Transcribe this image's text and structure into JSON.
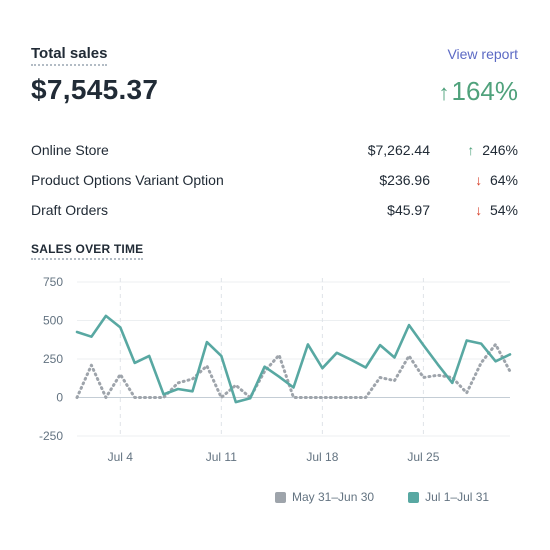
{
  "header": {
    "title": "Total sales",
    "view_report": "View report",
    "total": "$7,545.37",
    "change_arrow": "↑",
    "change_value": "164%"
  },
  "rows": [
    {
      "name": "Online Store",
      "amount": "$7,262.44",
      "arrow": "↑",
      "change": "246%",
      "direction": "up"
    },
    {
      "name": "Product Options Variant Option",
      "amount": "$236.96",
      "arrow": "↓",
      "change": "64%",
      "direction": "down"
    },
    {
      "name": "Draft Orders",
      "amount": "$45.97",
      "arrow": "↓",
      "change": "54%",
      "direction": "down"
    }
  ],
  "sales_over_time_title": "SALES OVER TIME",
  "colors": {
    "current": "#58a8a2",
    "previous": "#9ea4ab",
    "up": "#50a27c",
    "down": "#d8402a",
    "link": "#5c6ac4"
  },
  "chart_data": {
    "type": "line",
    "ylim": [
      -250,
      750
    ],
    "y_ticks": [
      750,
      500,
      250,
      0,
      -250
    ],
    "y_tick_labels": [
      "750",
      "500",
      "250",
      "0",
      "-250"
    ],
    "x_tick_labels": [
      "Jul 4",
      "Jul 11",
      "Jul 18",
      "Jul 25"
    ],
    "x_tick_index": [
      3,
      10,
      17,
      24
    ],
    "grid": "horizontal",
    "legend_position": "bottom",
    "series": [
      {
        "name": "May 31–Jun 30",
        "style": "dotted",
        "values": [
          0,
          210,
          0,
          150,
          0,
          0,
          0,
          95,
          120,
          205,
          0,
          80,
          0,
          170,
          275,
          0,
          0,
          0,
          0,
          0,
          0,
          130,
          110,
          270,
          130,
          145,
          130,
          30,
          225,
          345,
          170
        ]
      },
      {
        "name": "Jul 1–Jul 31",
        "style": "solid",
        "values": [
          425,
          395,
          530,
          455,
          225,
          270,
          20,
          55,
          40,
          360,
          270,
          -30,
          -5,
          200,
          135,
          65,
          345,
          190,
          290,
          245,
          195,
          340,
          260,
          470,
          340,
          215,
          95,
          370,
          350,
          235,
          280
        ]
      }
    ]
  }
}
